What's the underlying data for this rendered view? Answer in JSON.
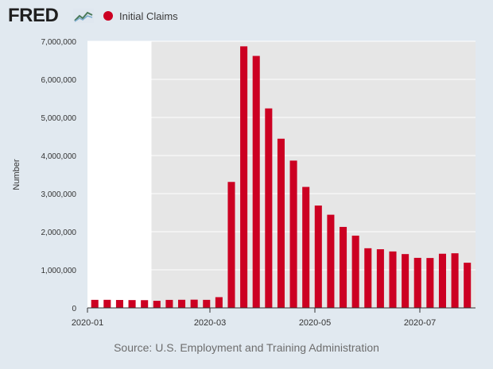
{
  "header": {
    "logo_text": "FRED",
    "logo_icon": "fred-graph-icon",
    "legend_label": "Initial Claims"
  },
  "colors": {
    "series": "#cc0022",
    "plot_bg": "#e6e6e6",
    "page_bg": "#e1e9f0",
    "unshaded": "#ffffff"
  },
  "source_text": "Source: U.S. Employment and Training Administration",
  "chart_data": {
    "type": "bar",
    "title": "",
    "xlabel": "",
    "ylabel": "Number",
    "ylim": [
      0,
      7000000
    ],
    "yticks": [
      0,
      1000000,
      2000000,
      3000000,
      4000000,
      5000000,
      6000000,
      7000000
    ],
    "ytick_labels": [
      "0",
      "1,000,000",
      "2,000,000",
      "3,000,000",
      "4,000,000",
      "5,000,000",
      "6,000,000",
      "7,000,000"
    ],
    "xticks": [
      "2020-01",
      "2020-03",
      "2020-05",
      "2020-07"
    ],
    "grid": "horizontal",
    "legend_position": "top-left",
    "unshaded_region_bars": 5,
    "series": [
      {
        "name": "Initial Claims",
        "values": [
          211000,
          212000,
          208000,
          205000,
          203000,
          186000,
          210000,
          213000,
          216000,
          211000,
          282000,
          3307000,
          6867000,
          6615000,
          5237000,
          4442000,
          3867000,
          3176000,
          2687000,
          2446000,
          2126000,
          1897000,
          1566000,
          1540000,
          1482000,
          1413000,
          1314000,
          1310000,
          1422000,
          1434000,
          1186000
        ]
      }
    ]
  }
}
